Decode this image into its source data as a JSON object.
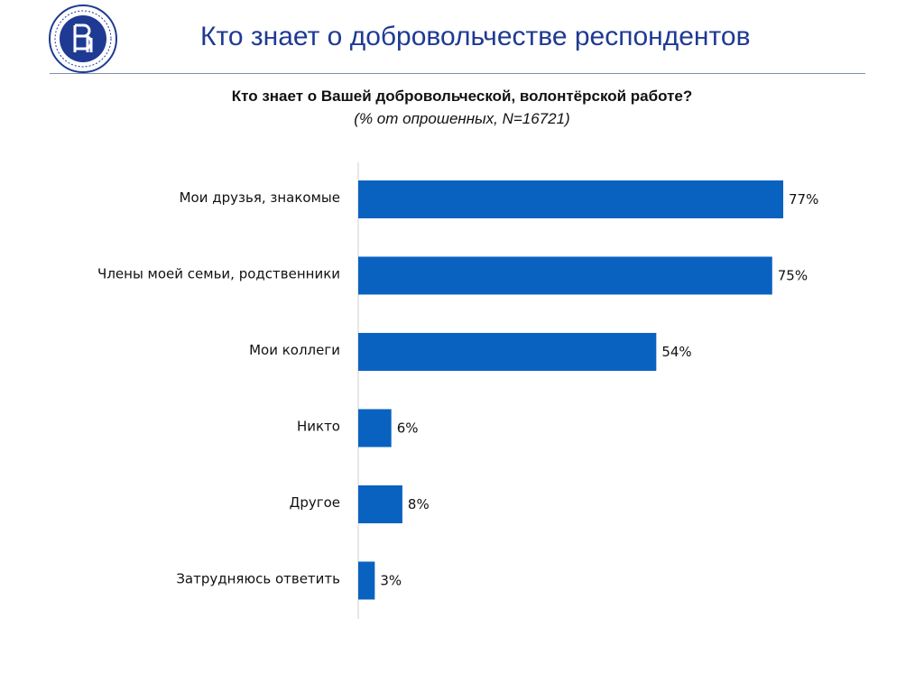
{
  "header": {
    "title": "Кто знает о добровольчестве респондентов",
    "logo_icon": "hse-university-seal-icon"
  },
  "colors": {
    "accent": "#1f3a93",
    "bar": "#0a62c0",
    "rule": "#7f8fa6"
  },
  "chart_data": {
    "type": "bar",
    "orientation": "horizontal",
    "title": "Кто знает о Вашей добровольческой, волонтёрской работе?",
    "subtitle": "(% от опрошенных, N=16721)",
    "categories": [
      "Мои друзья, знакомые",
      "Члены моей семьи, родственники",
      "Мои коллеги",
      "Никто",
      "Другое",
      "Затрудняюсь ответить"
    ],
    "values": [
      77,
      75,
      54,
      6,
      8,
      3
    ],
    "value_labels": [
      "77%",
      "75%",
      "54%",
      "6%",
      "8%",
      "3%"
    ],
    "unit": "%",
    "xlim": [
      0,
      100
    ],
    "grid": false,
    "legend": "none"
  }
}
